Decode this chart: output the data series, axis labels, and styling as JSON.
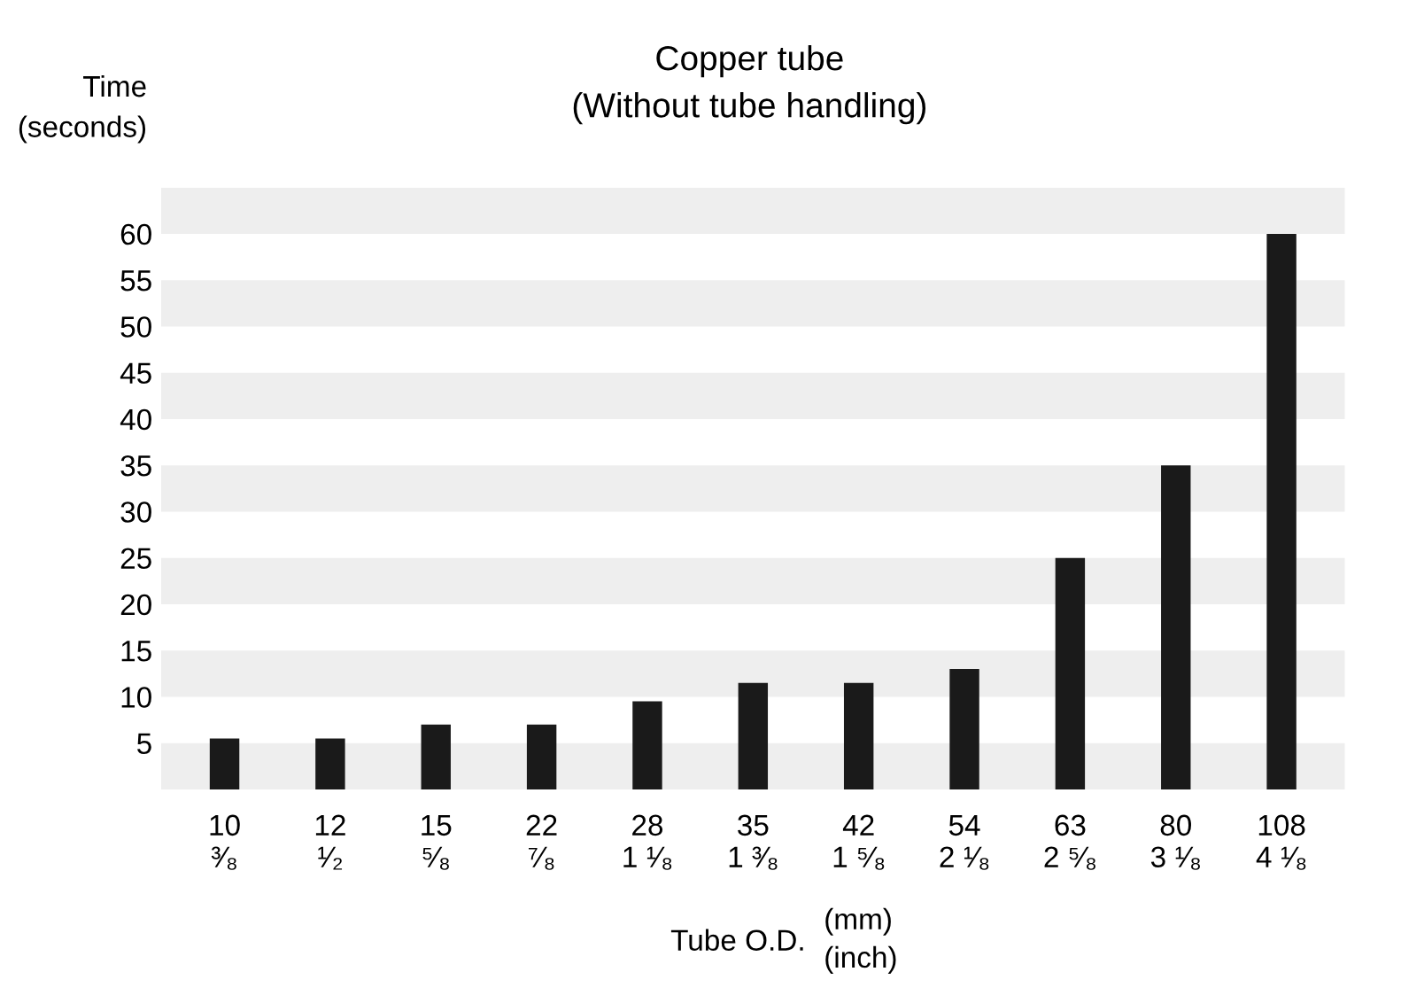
{
  "chart_data": {
    "type": "bar",
    "title": "Copper tube\n(Without tube handling)",
    "ylabel": "Time\n(seconds)",
    "xlabel": "Tube O.D.",
    "annotations": [
      "(mm)\n(inch)"
    ],
    "categories": [
      "10\n³⁄₈",
      "12\n¹⁄₂",
      "15\n⁵⁄₈",
      "22\n⁷⁄₈",
      "28\n1 ¹⁄₈",
      "35\n1 ³⁄₈",
      "42\n1 ⁵⁄₈",
      "54\n2 ¹⁄₈",
      "63\n2 ⁵⁄₈",
      "80\n3 ¹⁄₈",
      "108\n4 ¹⁄₈"
    ],
    "values": [
      5.5,
      5.5,
      7,
      7,
      9.5,
      11.5,
      11.5,
      13,
      25,
      35,
      60
    ],
    "color": "#1a1a1a",
    "ylim": [
      0,
      65
    ],
    "yticks": [
      5,
      10,
      15,
      20,
      25,
      30,
      35,
      40,
      45,
      50,
      55,
      60
    ],
    "bands": [
      {
        "axis": "y",
        "from": 0,
        "to": 5,
        "color": "#eeeeee"
      },
      {
        "axis": "y",
        "from": 10,
        "to": 15,
        "color": "#eeeeee"
      },
      {
        "axis": "y",
        "from": 20,
        "to": 25,
        "color": "#eeeeee"
      },
      {
        "axis": "y",
        "from": 30,
        "to": 35,
        "color": "#eeeeee"
      },
      {
        "axis": "y",
        "from": 40,
        "to": 45,
        "color": "#eeeeee"
      },
      {
        "axis": "y",
        "from": 50,
        "to": 55,
        "color": "#eeeeee"
      },
      {
        "axis": "y",
        "from": 60,
        "to": 65,
        "color": "#eeeeee"
      }
    ]
  }
}
